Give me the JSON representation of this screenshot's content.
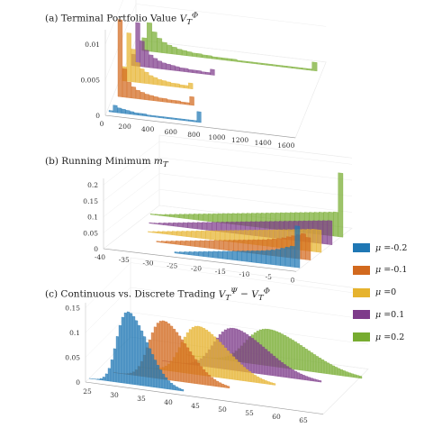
{
  "panels": [
    {
      "label": "(a) Terminal Portfolio Value",
      "math": "V",
      "sub": "T",
      "sup": "Φ"
    },
    {
      "label": "(b) Running Minimum",
      "math": "m",
      "sub": "T"
    },
    {
      "label": "(c) Continuous vs. Discrete Trading",
      "math": "V",
      "sub": "T",
      "sup": "Ψ",
      "minus": "V",
      "sub2": "T",
      "sup2": "Φ"
    }
  ],
  "legend": {
    "prefix": "μ =",
    "items": [
      {
        "label": "-0.2",
        "color": "#1f77b4"
      },
      {
        "label": "-0.1",
        "color": "#d2691e"
      },
      {
        "label": "0",
        "color": "#e6b32e"
      },
      {
        "label": "0.1",
        "color": "#7e3b8a"
      },
      {
        "label": "0.2",
        "color": "#77ac30"
      }
    ]
  },
  "chart_data": [
    {
      "type": "bar",
      "title": "(a) Terminal Portfolio Value V_T^Φ",
      "x_ticks": [
        0,
        200,
        400,
        600,
        800,
        1000,
        1200,
        1400,
        1600
      ],
      "y_ticks": [
        0,
        0.005,
        0.01
      ],
      "zlim": [
        0,
        0.012
      ],
      "series": [
        {
          "name": "μ =-0.2",
          "x_end": 800,
          "values": [
            0.0002,
            0.001,
            0.0007,
            0.0006,
            0.0005,
            0.0004,
            0.0003,
            0.0003,
            0.0003,
            0.0002,
            0.0002,
            0.0002,
            0.0002,
            0.0002,
            0.0002,
            0.0002,
            0.0002,
            0.0002,
            0.0002,
            0.0002,
            0.0002,
            0.0015
          ]
        },
        {
          "name": "μ =-0.1",
          "x_end": 700,
          "values": [
            0.0,
            0.0108,
            0.004,
            0.0022,
            0.0016,
            0.0012,
            0.001,
            0.0008,
            0.0007,
            0.0006,
            0.0005,
            0.0005,
            0.0004,
            0.0004,
            0.0004,
            0.0003,
            0.0003,
            0.0012
          ]
        },
        {
          "name": "μ =0",
          "x_end": 650,
          "values": [
            0.0,
            0.002,
            0.0068,
            0.0046,
            0.0028,
            0.002,
            0.0016,
            0.0012,
            0.001,
            0.0008,
            0.0007,
            0.0006,
            0.0005,
            0.0005,
            0.0004,
            0.0004,
            0.0008
          ]
        },
        {
          "name": "μ =0.1",
          "x_end": 800,
          "values": [
            0.0,
            0.0,
            0.0016,
            0.0061,
            0.0036,
            0.0024,
            0.0018,
            0.0014,
            0.0011,
            0.0009,
            0.0008,
            0.0007,
            0.0006,
            0.0005,
            0.0005,
            0.0004,
            0.0004,
            0.0004,
            0.0003,
            0.0003,
            0.0008
          ]
        },
        {
          "name": "μ =0.2",
          "x_end": 1650,
          "values": [
            0.0,
            0.0,
            0.0,
            0.0018,
            0.004,
            0.0028,
            0.002,
            0.0015,
            0.0012,
            0.001,
            0.0008,
            0.0007,
            0.0006,
            0.0005,
            0.0005,
            0.0004,
            0.0004,
            0.0003,
            0.0003,
            0.0003,
            0.0003,
            0.0003,
            0.0002,
            0.0002,
            0.0002,
            0.0002,
            0.0002,
            0.0002,
            0.0002,
            0.0002,
            0.0002,
            0.0002,
            0.0002,
            0.0002,
            0.0002,
            0.0002,
            0.0002,
            0.0012
          ]
        }
      ]
    },
    {
      "type": "bar",
      "title": "(b) Running Minimum m_T",
      "x_ticks": [
        -40,
        -35,
        -30,
        -25,
        -20,
        -15,
        -10,
        -5,
        0
      ],
      "y_ticks": [
        0,
        0.05,
        0.1,
        0.15,
        0.2
      ],
      "zlim": [
        0,
        0.22
      ],
      "series": [
        {
          "name": "μ =-0.2",
          "x_start": -26,
          "values": [
            0.004,
            0.006,
            0.008,
            0.01,
            0.012,
            0.014,
            0.016,
            0.018,
            0.02,
            0.022,
            0.024,
            0.026,
            0.028,
            0.03,
            0.032,
            0.034,
            0.036,
            0.038,
            0.04,
            0.043,
            0.046,
            0.05,
            0.055,
            0.06,
            0.065,
            0.13
          ]
        },
        {
          "name": "μ =-0.1",
          "x_start": -32,
          "values": [
            0.003,
            0.005,
            0.007,
            0.009,
            0.011,
            0.013,
            0.015,
            0.017,
            0.019,
            0.021,
            0.023,
            0.025,
            0.027,
            0.029,
            0.031,
            0.033,
            0.035,
            0.037,
            0.039,
            0.041,
            0.043,
            0.045,
            0.047,
            0.05,
            0.053,
            0.056,
            0.06,
            0.065,
            0.07,
            0.075,
            0.08,
            0.07
          ]
        },
        {
          "name": "μ =0",
          "x_start": -36,
          "values": [
            0.002,
            0.004,
            0.006,
            0.008,
            0.01,
            0.012,
            0.014,
            0.016,
            0.018,
            0.02,
            0.022,
            0.024,
            0.026,
            0.028,
            0.03,
            0.032,
            0.034,
            0.036,
            0.038,
            0.04,
            0.042,
            0.044,
            0.046,
            0.048,
            0.05,
            0.052,
            0.054,
            0.056,
            0.058,
            0.06,
            0.062,
            0.064,
            0.066,
            0.068,
            0.07,
            0.07
          ]
        },
        {
          "name": "μ =0.1",
          "x_start": -38,
          "values": [
            0.002,
            0.003,
            0.005,
            0.007,
            0.009,
            0.011,
            0.013,
            0.015,
            0.017,
            0.019,
            0.021,
            0.023,
            0.025,
            0.027,
            0.029,
            0.031,
            0.033,
            0.035,
            0.037,
            0.039,
            0.041,
            0.043,
            0.045,
            0.047,
            0.049,
            0.051,
            0.053,
            0.055,
            0.057,
            0.059,
            0.061,
            0.063,
            0.065,
            0.067,
            0.069,
            0.071,
            0.073,
            0.075
          ]
        },
        {
          "name": "μ =0.2",
          "x_start": -40,
          "values": [
            0.002,
            0.003,
            0.004,
            0.006,
            0.008,
            0.01,
            0.012,
            0.014,
            0.016,
            0.018,
            0.02,
            0.022,
            0.024,
            0.026,
            0.028,
            0.03,
            0.032,
            0.034,
            0.036,
            0.038,
            0.04,
            0.042,
            0.044,
            0.046,
            0.048,
            0.05,
            0.052,
            0.054,
            0.056,
            0.058,
            0.06,
            0.062,
            0.064,
            0.066,
            0.068,
            0.07,
            0.072,
            0.074,
            0.076,
            0.2
          ]
        }
      ]
    },
    {
      "type": "bar",
      "title": "(c) Continuous vs. Discrete Trading V_T^Ψ − V_T^Φ",
      "x_ticks": [
        25,
        30,
        35,
        40,
        45,
        50,
        55,
        60,
        65
      ],
      "y_ticks": [
        0,
        0.05,
        0.1,
        0.15
      ],
      "zlim": [
        0,
        0.16
      ],
      "series": [
        {
          "name": "μ =-0.2",
          "mean": 31,
          "sd": 2.7,
          "peak": 0.145,
          "range": [
            24,
            41
          ]
        },
        {
          "name": "μ =-0.1",
          "mean": 36,
          "sd": 3.4,
          "peak": 0.118,
          "range": [
            27,
            48
          ]
        },
        {
          "name": "μ =0",
          "mean": 41,
          "sd": 4.0,
          "peak": 0.098,
          "range": [
            30,
            55
          ]
        },
        {
          "name": "μ =0.1",
          "mean": 46,
          "sd": 4.6,
          "peak": 0.085,
          "range": [
            33,
            62
          ]
        },
        {
          "name": "μ =0.2",
          "mean": 51,
          "sd": 5.3,
          "peak": 0.074,
          "range": [
            36,
            68
          ]
        }
      ]
    }
  ]
}
